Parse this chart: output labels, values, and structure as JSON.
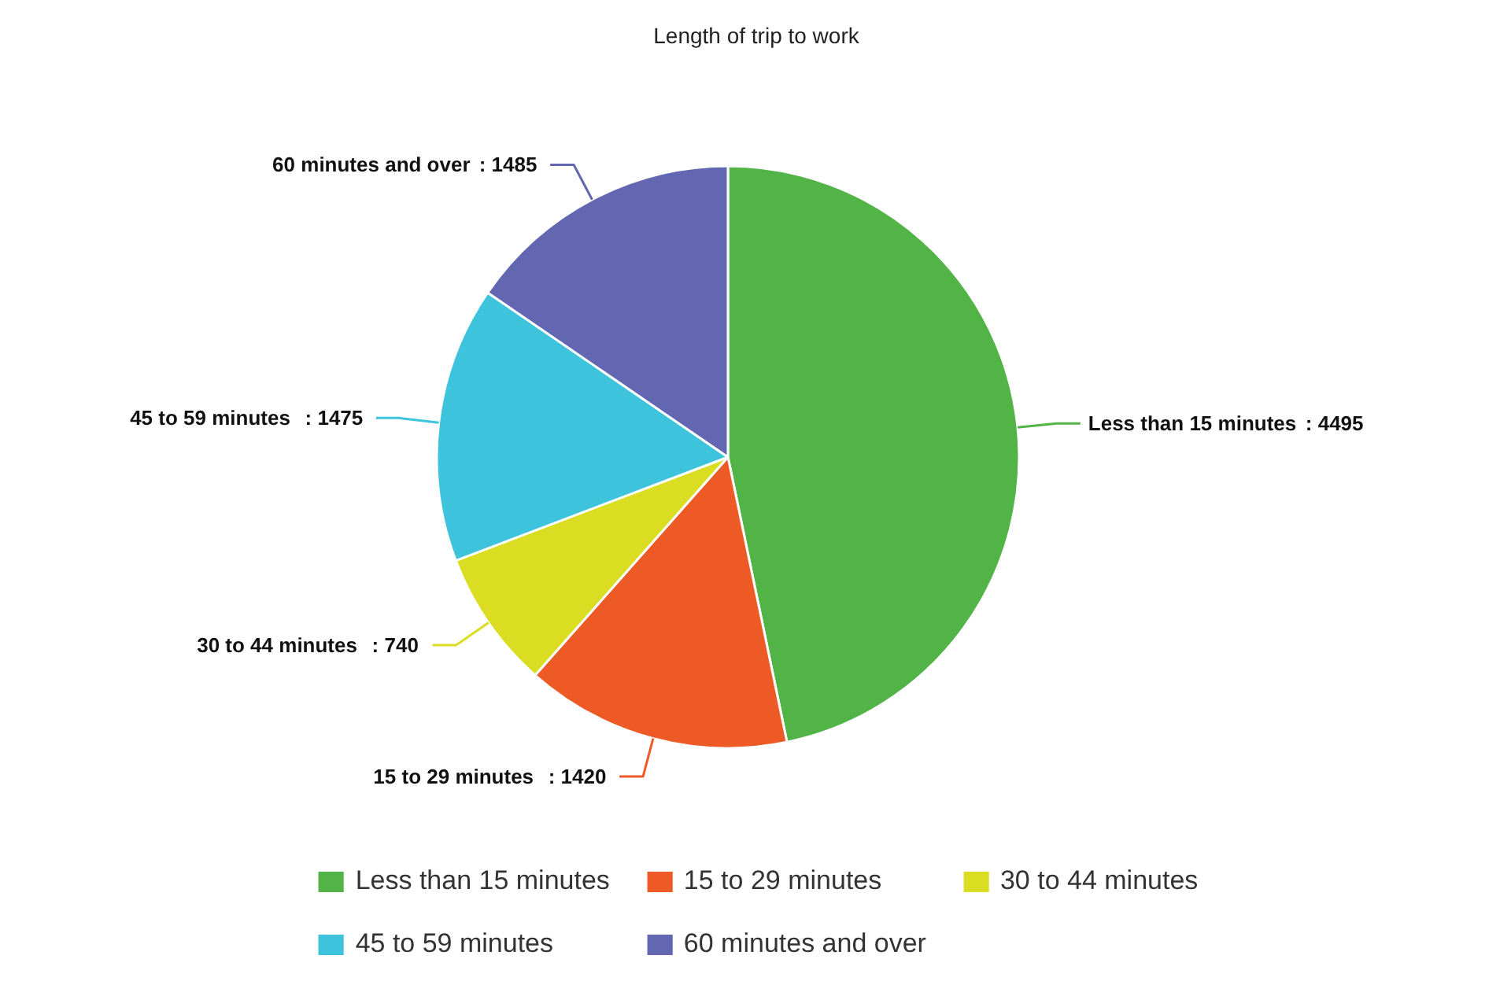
{
  "chart_data": {
    "type": "pie",
    "title": "Length of trip to work",
    "categories": [
      "Less than 15 minutes",
      "15 to 29 minutes",
      "30 to 44 minutes",
      "45 to 59 minutes",
      "60 minutes and over"
    ],
    "values": [
      4495,
      1420,
      740,
      1475,
      1485
    ],
    "colors": [
      "#52b347",
      "#ee5a26",
      "#dbdd22",
      "#3ec3dc",
      "#6366b0"
    ],
    "value_labels": [
      ": 4495",
      ": 1420",
      ": 740",
      ": 1475",
      ": 1485"
    ],
    "legend": "bottom"
  }
}
